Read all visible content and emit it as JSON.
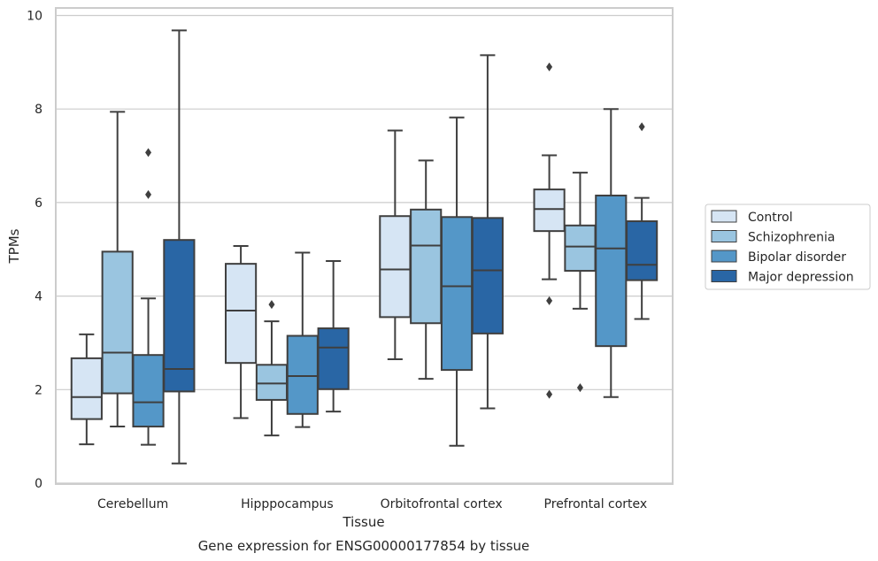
{
  "chart_data": {
    "type": "box",
    "xlabel": "Tissue",
    "ylabel": "TPMs",
    "caption": "Gene expression for ENSG00000177854 by tissue",
    "ylim": [
      0,
      10
    ],
    "yticks": [
      0,
      2,
      4,
      6,
      8,
      10
    ],
    "grid": "y",
    "legend_position": "right",
    "categories": [
      "Cerebellum",
      "Hipppocampus",
      "Orbitofrontal cortex",
      "Prefrontal cortex"
    ],
    "series": [
      {
        "name": "Control",
        "color": "#d6e5f4",
        "boxes": [
          {
            "whislo": 0.83,
            "q1": 1.37,
            "med": 1.84,
            "q3": 2.67,
            "whishi": 3.18,
            "fliers": []
          },
          {
            "whislo": 1.39,
            "q1": 2.57,
            "med": 3.69,
            "q3": 4.69,
            "whishi": 5.07,
            "fliers": []
          },
          {
            "whislo": 2.65,
            "q1": 3.55,
            "med": 4.57,
            "q3": 5.71,
            "whishi": 7.54,
            "fliers": []
          },
          {
            "whislo": 4.36,
            "q1": 5.39,
            "med": 5.86,
            "q3": 6.28,
            "whishi": 7.01,
            "fliers": [
              3.9,
              1.9,
              8.9
            ]
          }
        ]
      },
      {
        "name": "Schizophrenia",
        "color": "#9ac5e0",
        "boxes": [
          {
            "whislo": 1.21,
            "q1": 1.92,
            "med": 2.79,
            "q3": 4.95,
            "whishi": 7.94,
            "fliers": []
          },
          {
            "whislo": 1.02,
            "q1": 1.78,
            "med": 2.13,
            "q3": 2.53,
            "whishi": 3.46,
            "fliers": [
              3.82
            ]
          },
          {
            "whislo": 2.23,
            "q1": 3.42,
            "med": 5.08,
            "q3": 5.85,
            "whishi": 6.9,
            "fliers": []
          },
          {
            "whislo": 3.73,
            "q1": 4.54,
            "med": 5.06,
            "q3": 5.51,
            "whishi": 6.64,
            "fliers": [
              2.04
            ]
          }
        ]
      },
      {
        "name": "Bipolar disorder",
        "color": "#5497c8",
        "boxes": [
          {
            "whislo": 0.82,
            "q1": 1.21,
            "med": 1.73,
            "q3": 2.74,
            "whishi": 3.95,
            "fliers": [
              6.17,
              7.07
            ]
          },
          {
            "whislo": 1.2,
            "q1": 1.48,
            "med": 2.29,
            "q3": 3.15,
            "whishi": 4.93,
            "fliers": []
          },
          {
            "whislo": 0.8,
            "q1": 2.42,
            "med": 4.21,
            "q3": 5.69,
            "whishi": 7.82,
            "fliers": []
          },
          {
            "whislo": 1.84,
            "q1": 2.93,
            "med": 5.02,
            "q3": 6.15,
            "whishi": 8.0,
            "fliers": []
          }
        ]
      },
      {
        "name": "Major depression",
        "color": "#2966a5",
        "boxes": [
          {
            "whislo": 0.42,
            "q1": 1.96,
            "med": 2.44,
            "q3": 5.2,
            "whishi": 9.68,
            "fliers": []
          },
          {
            "whislo": 1.53,
            "q1": 2.01,
            "med": 2.9,
            "q3": 3.31,
            "whishi": 4.75,
            "fliers": []
          },
          {
            "whislo": 1.6,
            "q1": 3.2,
            "med": 4.55,
            "q3": 5.67,
            "whishi": 9.15,
            "fliers": []
          },
          {
            "whislo": 3.51,
            "q1": 4.34,
            "med": 4.67,
            "q3": 5.6,
            "whishi": 6.1,
            "fliers": [
              7.62
            ]
          }
        ]
      }
    ]
  }
}
